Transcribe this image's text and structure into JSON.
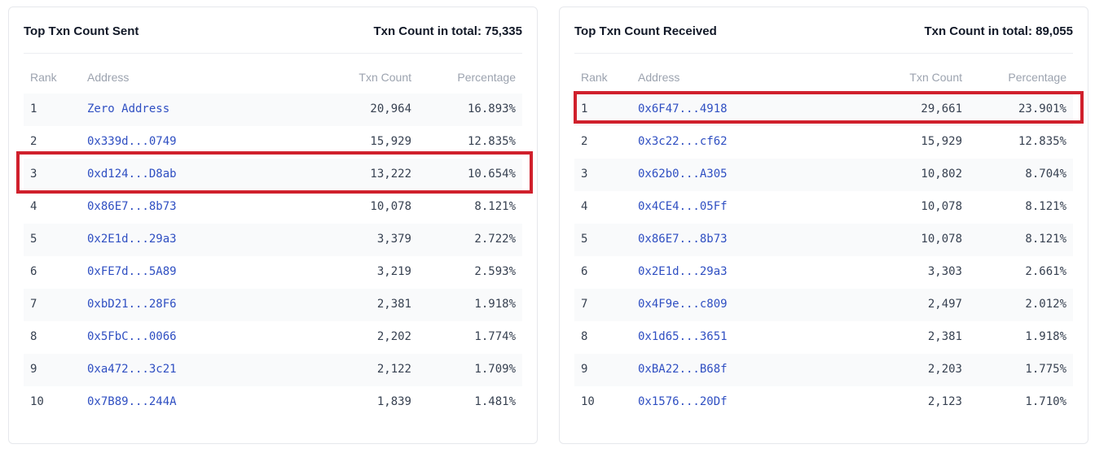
{
  "sent": {
    "title": "Top Txn Count Sent",
    "total_label": "Txn Count in total",
    "total_value": "75,335",
    "columns": [
      "Rank",
      "Address",
      "Txn Count",
      "Percentage"
    ],
    "rows": [
      {
        "rank": "1",
        "address": "Zero Address",
        "count": "20,964",
        "pct": "16.893%"
      },
      {
        "rank": "2",
        "address": "0x339d...0749",
        "count": "15,929",
        "pct": "12.835%"
      },
      {
        "rank": "3",
        "address": "0xd124...D8ab",
        "count": "13,222",
        "pct": "10.654%"
      },
      {
        "rank": "4",
        "address": "0x86E7...8b73",
        "count": "10,078",
        "pct": "8.121%"
      },
      {
        "rank": "5",
        "address": "0x2E1d...29a3",
        "count": "3,379",
        "pct": "2.722%"
      },
      {
        "rank": "6",
        "address": "0xFE7d...5A89",
        "count": "3,219",
        "pct": "2.593%"
      },
      {
        "rank": "7",
        "address": "0xbD21...28F6",
        "count": "2,381",
        "pct": "1.918%"
      },
      {
        "rank": "8",
        "address": "0x5FbC...0066",
        "count": "2,202",
        "pct": "1.774%"
      },
      {
        "rank": "9",
        "address": "0xa472...3c21",
        "count": "2,122",
        "pct": "1.709%"
      },
      {
        "rank": "10",
        "address": "0x7B89...244A",
        "count": "1,839",
        "pct": "1.481%"
      }
    ]
  },
  "received": {
    "title": "Top Txn Count Received",
    "total_label": "Txn Count in total",
    "total_value": "89,055",
    "columns": [
      "Rank",
      "Address",
      "Txn Count",
      "Percentage"
    ],
    "rows": [
      {
        "rank": "1",
        "address": "0x6F47...4918",
        "count": "29,661",
        "pct": "23.901%"
      },
      {
        "rank": "2",
        "address": "0x3c22...cf62",
        "count": "15,929",
        "pct": "12.835%"
      },
      {
        "rank": "3",
        "address": "0x62b0...A305",
        "count": "10,802",
        "pct": "8.704%"
      },
      {
        "rank": "4",
        "address": "0x4CE4...05Ff",
        "count": "10,078",
        "pct": "8.121%"
      },
      {
        "rank": "5",
        "address": "0x86E7...8b73",
        "count": "10,078",
        "pct": "8.121%"
      },
      {
        "rank": "6",
        "address": "0x2E1d...29a3",
        "count": "3,303",
        "pct": "2.661%"
      },
      {
        "rank": "7",
        "address": "0x4F9e...c809",
        "count": "2,497",
        "pct": "2.012%"
      },
      {
        "rank": "8",
        "address": "0x1d65...3651",
        "count": "2,381",
        "pct": "1.918%"
      },
      {
        "rank": "9",
        "address": "0xBA22...B68f",
        "count": "2,203",
        "pct": "1.775%"
      },
      {
        "rank": "10",
        "address": "0x1576...20Df",
        "count": "2,123",
        "pct": "1.710%"
      }
    ]
  },
  "colors": {
    "link": "#2f4fc2",
    "highlight": "#d0202c",
    "header_text": "#9ca3af",
    "title_text": "#111827"
  }
}
